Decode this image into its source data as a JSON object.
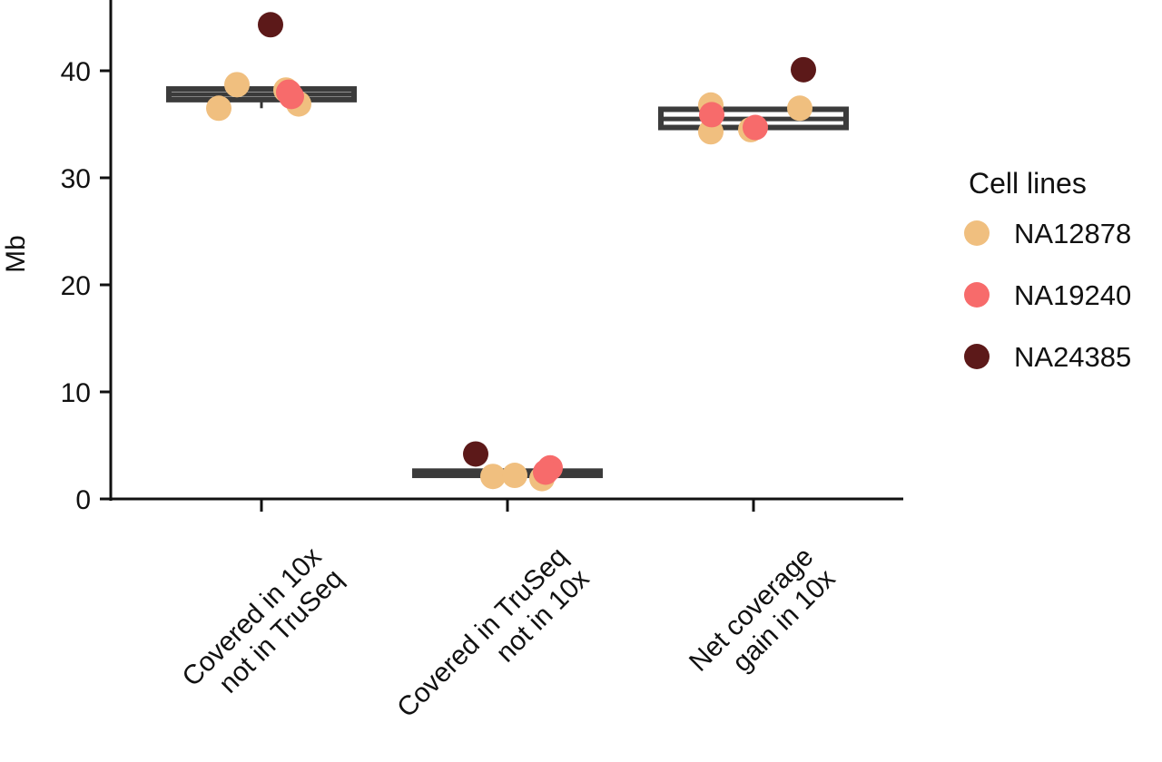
{
  "chart_data": {
    "type": "box",
    "xlabel": "",
    "ylabel": "Mb",
    "ylim": [
      0,
      47
    ],
    "y_ticks": [
      "0",
      "10",
      "20",
      "30",
      "40"
    ],
    "categories": [
      [
        "Covered in 10x",
        "not in TruSeq"
      ],
      [
        "Covered in TruSeq",
        "not in 10x"
      ],
      [
        "Net coverage",
        "gain in 10x"
      ]
    ],
    "legend": {
      "title": "Cell lines",
      "placement": "right",
      "items": [
        {
          "label": "NA12878",
          "color": "#f0bf7f"
        },
        {
          "label": "NA19240",
          "color": "#f76b6b"
        },
        {
          "label": "NA24385",
          "color": "#5c1919"
        }
      ]
    },
    "boxes": [
      {
        "q1": 37.3,
        "median": 37.8,
        "q3": 38.3,
        "whisker_low": 36.5,
        "whisker_high": 38.3
      },
      {
        "q1": 2.2,
        "median": 2.4,
        "q3": 2.6,
        "whisker_low": 2.2,
        "whisker_high": 2.6
      },
      {
        "q1": 34.7,
        "median": 35.5,
        "q3": 36.4,
        "whisker_low": 34.7,
        "whisker_high": 36.4
      }
    ],
    "series": [
      {
        "name": "NA12878",
        "points": [
          {
            "category": 0,
            "y": 38.7
          },
          {
            "category": 0,
            "y": 36.5
          },
          {
            "category": 0,
            "y": 38.2
          },
          {
            "category": 0,
            "y": 36.9
          },
          {
            "category": 1,
            "y": 2.1
          },
          {
            "category": 1,
            "y": 2.2
          },
          {
            "category": 1,
            "y": 1.9
          },
          {
            "category": 2,
            "y": 36.8
          },
          {
            "category": 2,
            "y": 34.3
          },
          {
            "category": 2,
            "y": 34.5
          },
          {
            "category": 2,
            "y": 36.5
          }
        ]
      },
      {
        "name": "NA19240",
        "points": [
          {
            "category": 0,
            "y": 38.0
          },
          {
            "category": 0,
            "y": 37.6
          },
          {
            "category": 1,
            "y": 2.9
          },
          {
            "category": 1,
            "y": 2.5
          },
          {
            "category": 2,
            "y": 35.9
          },
          {
            "category": 2,
            "y": 34.7
          }
        ]
      },
      {
        "name": "NA24385",
        "points": [
          {
            "category": 0,
            "y": 44.3
          },
          {
            "category": 1,
            "y": 4.2
          },
          {
            "category": 2,
            "y": 40.1
          }
        ]
      }
    ]
  }
}
